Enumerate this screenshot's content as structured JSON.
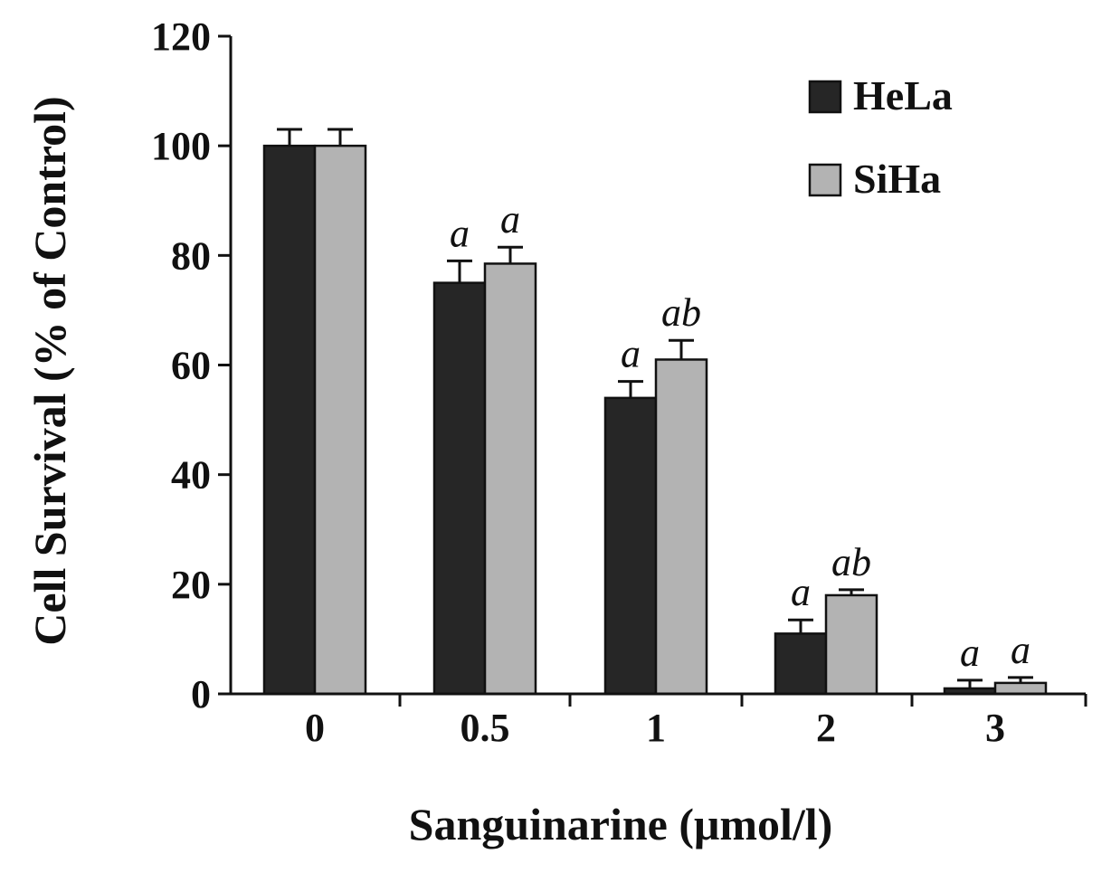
{
  "chart_data": {
    "type": "bar",
    "title": "",
    "xlabel": "Sanguinarine (μmol/l)",
    "ylabel": "Cell Survival (% of Control)",
    "categories": [
      "0",
      "0.5",
      "1",
      "2",
      "3"
    ],
    "ylim": [
      0,
      120
    ],
    "yticks": [
      "0",
      "20",
      "40",
      "60",
      "80",
      "100",
      "120"
    ],
    "grid": false,
    "legend_position": "top-right",
    "series": [
      {
        "name": "HeLa",
        "color": "#262626",
        "values": [
          100,
          75,
          54,
          11,
          1
        ],
        "errors": [
          3,
          4,
          3,
          2.5,
          1.5
        ],
        "annotations": [
          "",
          "a",
          "a",
          "a",
          "a"
        ]
      },
      {
        "name": "SiHa",
        "color": "#b3b3b3",
        "values": [
          100,
          78.5,
          61,
          18,
          2
        ],
        "errors": [
          3,
          3,
          3.5,
          1,
          1
        ],
        "annotations": [
          "",
          "a",
          "ab",
          "ab",
          "a"
        ]
      }
    ]
  }
}
